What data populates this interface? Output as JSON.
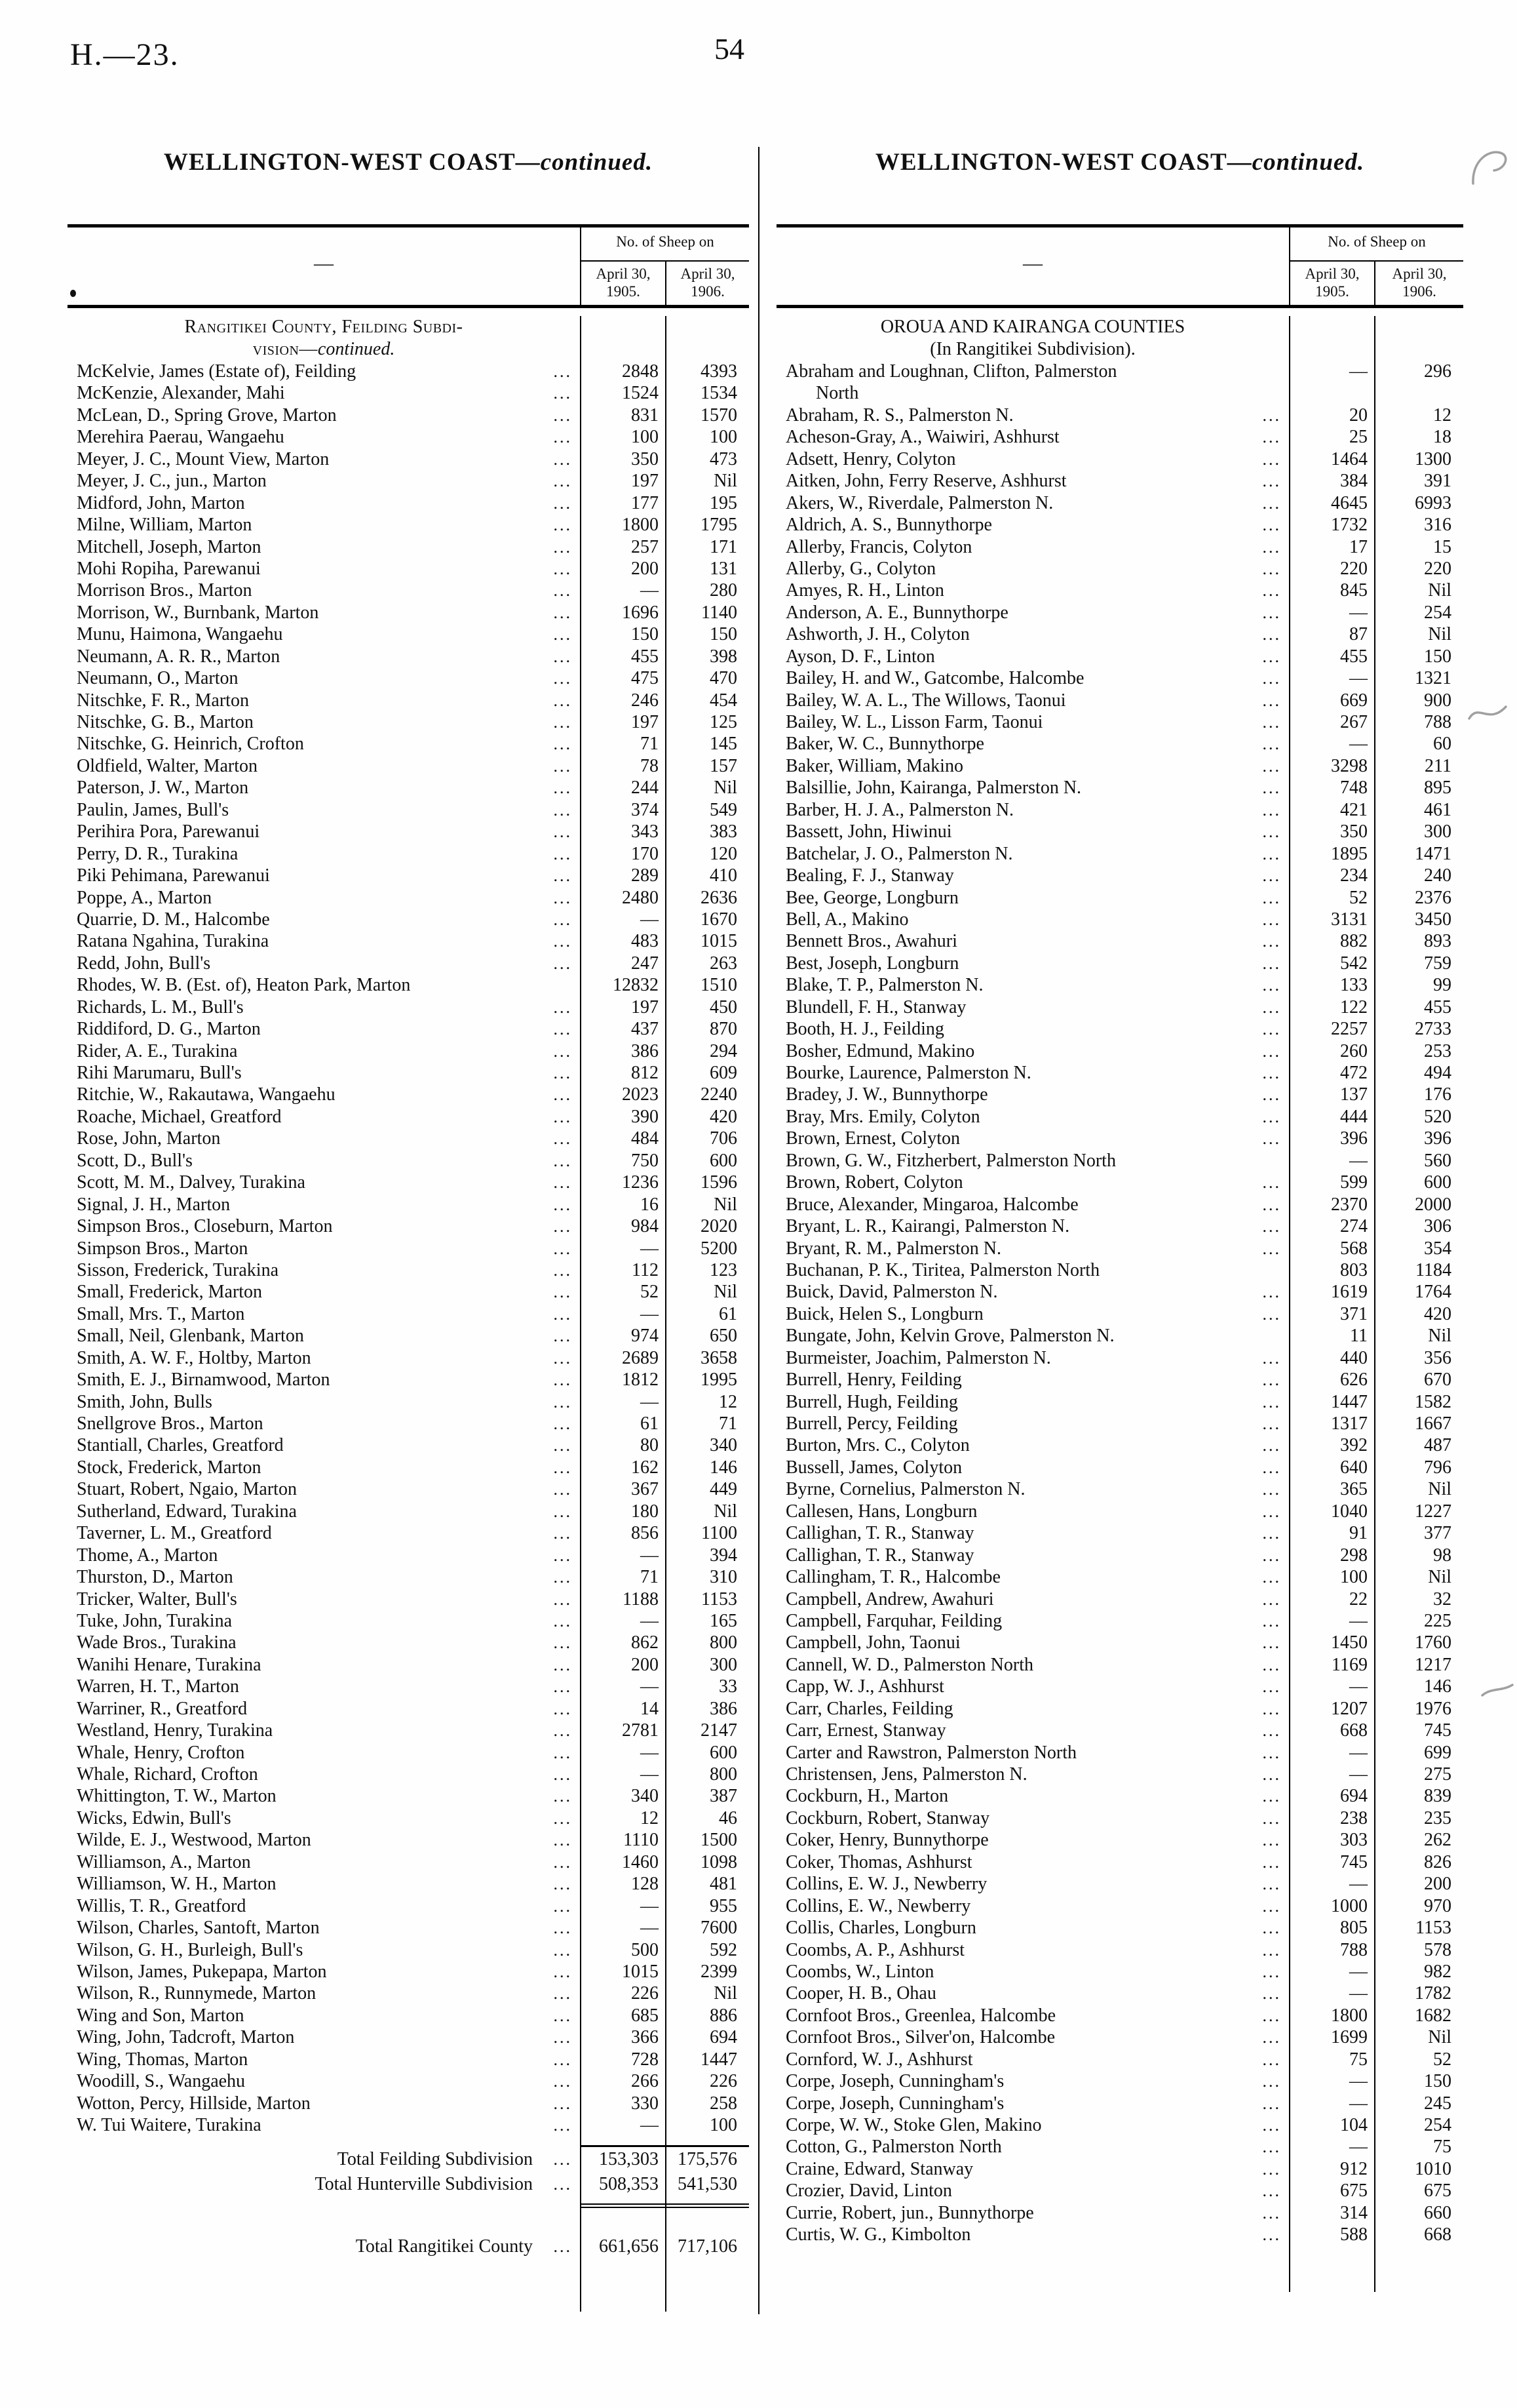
{
  "page": {
    "doc_ref": "H.—23.",
    "page_number": "54"
  },
  "left_column": {
    "title_main": "WELLINGTON-WEST COAST—",
    "title_continued": "continued.",
    "table_header": {
      "group": "No. of Sheep on",
      "name_placeholder": "—",
      "col1_line1": "April 30,",
      "col1_line2": "1905.",
      "col2_line1": "April 30,",
      "col2_line2": "1906."
    },
    "section_heading": {
      "line1": "Rangitikei County, Feilding Subdi-",
      "line2_pre": "vision—",
      "line2_italic": "continued."
    },
    "rows": [
      {
        "name": "McKelvie, James (Estate of), Feilding",
        "v1905": "2848",
        "v1906": "4393"
      },
      {
        "name": "McKenzie, Alexander, Mahi",
        "v1905": "1524",
        "v1906": "1534"
      },
      {
        "name": "McLean, D., Spring Grove, Marton",
        "v1905": "831",
        "v1906": "1570"
      },
      {
        "name": "Merehira Paerau, Wangaehu",
        "v1905": "100",
        "v1906": "100"
      },
      {
        "name": "Meyer, J. C., Mount View, Marton",
        "v1905": "350",
        "v1906": "473"
      },
      {
        "name": "Meyer, J. C., jun., Marton",
        "v1905": "197",
        "v1906": "Nil"
      },
      {
        "name": "Midford, John, Marton",
        "v1905": "177",
        "v1906": "195"
      },
      {
        "name": "Milne, William, Marton",
        "v1905": "1800",
        "v1906": "1795"
      },
      {
        "name": "Mitchell, Joseph, Marton",
        "v1905": "257",
        "v1906": "171"
      },
      {
        "name": "Mohi Ropiha, Parewanui",
        "v1905": "200",
        "v1906": "131"
      },
      {
        "name": "Morrison Bros., Marton",
        "v1905": "—",
        "v1906": "280"
      },
      {
        "name": "Morrison, W., Burnbank, Marton",
        "v1905": "1696",
        "v1906": "1140"
      },
      {
        "name": "Munu, Haimona, Wangaehu",
        "v1905": "150",
        "v1906": "150"
      },
      {
        "name": "Neumann, A. R. R., Marton",
        "v1905": "455",
        "v1906": "398"
      },
      {
        "name": "Neumann, O., Marton",
        "v1905": "475",
        "v1906": "470"
      },
      {
        "name": "Nitschke, F. R., Marton",
        "v1905": "246",
        "v1906": "454"
      },
      {
        "name": "Nitschke, G. B., Marton",
        "v1905": "197",
        "v1906": "125"
      },
      {
        "name": "Nitschke, G. Heinrich, Crofton",
        "v1905": "71",
        "v1906": "145"
      },
      {
        "name": "Oldfield, Walter, Marton",
        "v1905": "78",
        "v1906": "157"
      },
      {
        "name": "Paterson, J. W., Marton",
        "v1905": "244",
        "v1906": "Nil"
      },
      {
        "name": "Paulin, James, Bull's",
        "v1905": "374",
        "v1906": "549"
      },
      {
        "name": "Perihira Pora, Parewanui",
        "v1905": "343",
        "v1906": "383"
      },
      {
        "name": "Perry, D. R., Turakina",
        "v1905": "170",
        "v1906": "120"
      },
      {
        "name": "Piki Pehimana, Parewanui",
        "v1905": "289",
        "v1906": "410"
      },
      {
        "name": "Poppe, A., Marton",
        "v1905": "2480",
        "v1906": "2636"
      },
      {
        "name": "Quarrie, D. M., Halcombe",
        "v1905": "—",
        "v1906": "1670"
      },
      {
        "name": "Ratana Ngahina, Turakina",
        "v1905": "483",
        "v1906": "1015"
      },
      {
        "name": "Redd, John, Bull's",
        "v1905": "247",
        "v1906": "263"
      },
      {
        "name": "Rhodes, W. B. (Est. of), Heaton Park, Marton",
        "dots": false,
        "v1905": "12832",
        "v1906": "1510"
      },
      {
        "name": "Richards, L. M., Bull's",
        "v1905": "197",
        "v1906": "450"
      },
      {
        "name": "Riddiford, D. G., Marton",
        "v1905": "437",
        "v1906": "870"
      },
      {
        "name": "Rider, A. E., Turakina",
        "v1905": "386",
        "v1906": "294"
      },
      {
        "name": "Rihi Marumaru, Bull's",
        "v1905": "812",
        "v1906": "609"
      },
      {
        "name": "Ritchie, W., Rakautawa, Wangaehu",
        "v1905": "2023",
        "v1906": "2240"
      },
      {
        "name": "Roache, Michael, Greatford",
        "v1905": "390",
        "v1906": "420"
      },
      {
        "name": "Rose, John, Marton",
        "v1905": "484",
        "v1906": "706"
      },
      {
        "name": "Scott, D., Bull's",
        "v1905": "750",
        "v1906": "600"
      },
      {
        "name": "Scott, M. M., Dalvey, Turakina",
        "v1905": "1236",
        "v1906": "1596"
      },
      {
        "name": "Signal, J. H., Marton",
        "v1905": "16",
        "v1906": "Nil"
      },
      {
        "name": "Simpson Bros., Closeburn, Marton",
        "v1905": "984",
        "v1906": "2020"
      },
      {
        "name": "Simpson Bros., Marton",
        "v1905": "—",
        "v1906": "5200"
      },
      {
        "name": "Sisson, Frederick, Turakina",
        "v1905": "112",
        "v1906": "123"
      },
      {
        "name": "Small, Frederick, Marton",
        "v1905": "52",
        "v1906": "Nil"
      },
      {
        "name": "Small, Mrs. T., Marton",
        "v1905": "—",
        "v1906": "61"
      },
      {
        "name": "Small, Neil, Glenbank, Marton",
        "v1905": "974",
        "v1906": "650"
      },
      {
        "name": "Smith, A. W. F., Holtby, Marton",
        "v1905": "2689",
        "v1906": "3658"
      },
      {
        "name": "Smith, E. J., Birnamwood, Marton",
        "v1905": "1812",
        "v1906": "1995"
      },
      {
        "name": "Smith, John, Bulls",
        "v1905": "—",
        "v1906": "12"
      },
      {
        "name": "Snellgrove Bros., Marton",
        "v1905": "61",
        "v1906": "71"
      },
      {
        "name": "Stantiall, Charles, Greatford",
        "v1905": "80",
        "v1906": "340"
      },
      {
        "name": "Stock, Frederick, Marton",
        "v1905": "162",
        "v1906": "146"
      },
      {
        "name": "Stuart, Robert, Ngaio, Marton",
        "v1905": "367",
        "v1906": "449"
      },
      {
        "name": "Sutherland, Edward, Turakina",
        "v1905": "180",
        "v1906": "Nil"
      },
      {
        "name": "Taverner, L. M., Greatford",
        "v1905": "856",
        "v1906": "1100"
      },
      {
        "name": "Thome, A., Marton",
        "v1905": "—",
        "v1906": "394"
      },
      {
        "name": "Thurston, D., Marton",
        "v1905": "71",
        "v1906": "310"
      },
      {
        "name": "Tricker, Walter, Bull's",
        "v1905": "1188",
        "v1906": "1153"
      },
      {
        "name": "Tuke, John, Turakina",
        "v1905": "—",
        "v1906": "165"
      },
      {
        "name": "Wade Bros., Turakina",
        "v1905": "862",
        "v1906": "800"
      },
      {
        "name": "Wanihi Henare, Turakina",
        "v1905": "200",
        "v1906": "300"
      },
      {
        "name": "Warren, H. T., Marton",
        "v1905": "—",
        "v1906": "33"
      },
      {
        "name": "Warriner, R., Greatford",
        "v1905": "14",
        "v1906": "386"
      },
      {
        "name": "Westland, Henry, Turakina",
        "v1905": "2781",
        "v1906": "2147"
      },
      {
        "name": "Whale, Henry, Crofton",
        "v1905": "—",
        "v1906": "600"
      },
      {
        "name": "Whale, Richard, Crofton",
        "v1905": "—",
        "v1906": "800"
      },
      {
        "name": "Whittington, T. W., Marton",
        "v1905": "340",
        "v1906": "387"
      },
      {
        "name": "Wicks, Edwin, Bull's",
        "v1905": "12",
        "v1906": "46"
      },
      {
        "name": "Wilde, E. J., Westwood, Marton",
        "v1905": "1110",
        "v1906": "1500"
      },
      {
        "name": "Williamson, A., Marton",
        "v1905": "1460",
        "v1906": "1098"
      },
      {
        "name": "Williamson, W. H., Marton",
        "v1905": "128",
        "v1906": "481"
      },
      {
        "name": "Willis, T. R., Greatford",
        "v1905": "—",
        "v1906": "955"
      },
      {
        "name": "Wilson, Charles, Santoft, Marton",
        "v1905": "—",
        "v1906": "7600"
      },
      {
        "name": "Wilson, G. H., Burleigh, Bull's",
        "v1905": "500",
        "v1906": "592"
      },
      {
        "name": "Wilson, James, Pukepapa, Marton",
        "v1905": "1015",
        "v1906": "2399"
      },
      {
        "name": "Wilson, R., Runnymede, Marton",
        "v1905": "226",
        "v1906": "Nil"
      },
      {
        "name": "Wing and Son, Marton",
        "v1905": "685",
        "v1906": "886"
      },
      {
        "name": "Wing, John, Tadcroft, Marton",
        "v1905": "366",
        "v1906": "694"
      },
      {
        "name": "Wing, Thomas, Marton",
        "v1905": "728",
        "v1906": "1447"
      },
      {
        "name": "Woodill, S., Wangaehu",
        "v1905": "266",
        "v1906": "226"
      },
      {
        "name": "Wotton, Percy, Hillside, Marton",
        "v1905": "330",
        "v1906": "258"
      },
      {
        "name": "W. Tui Waitere, Turakina",
        "v1905": "—",
        "v1906": "100"
      }
    ],
    "totals": [
      {
        "label": "Total Feilding Subdivision",
        "v1905": "153,303",
        "v1906": "175,576"
      },
      {
        "label": "Total Hunterville Subdivision",
        "v1905": "508,353",
        "v1906": "541,530"
      }
    ],
    "grand_total": {
      "label": "Total Rangitikei County",
      "v1905": "661,656",
      "v1906": "717,106"
    }
  },
  "right_column": {
    "title_main": "WELLINGTON-WEST COAST—",
    "title_continued": "continued.",
    "table_header": {
      "group": "No. of Sheep on",
      "name_placeholder": "—",
      "col1_line1": "April 30,",
      "col1_line2": "1905.",
      "col2_line1": "April 30,",
      "col2_line2": "1906."
    },
    "section_heading": {
      "line1": "OROUA AND KAIRANGA COUNTIES",
      "line2_pre": "(In Rangitikei Subdivision).",
      "line2_italic": ""
    },
    "rows": [
      {
        "name": "Abraham and Loughnan, Clifton, Palmerston",
        "name2": "North",
        "dots": false,
        "v1905": "—",
        "v1906": "296"
      },
      {
        "name": "Abraham, R. S., Palmerston N.",
        "v1905": "20",
        "v1906": "12"
      },
      {
        "name": "Acheson-Gray, A., Waiwiri, Ashhurst",
        "v1905": "25",
        "v1906": "18"
      },
      {
        "name": "Adsett, Henry, Colyton",
        "v1905": "1464",
        "v1906": "1300"
      },
      {
        "name": "Aitken, John, Ferry Reserve, Ashhurst",
        "v1905": "384",
        "v1906": "391"
      },
      {
        "name": "Akers, W., Riverdale, Palmerston N.",
        "v1905": "4645",
        "v1906": "6993"
      },
      {
        "name": "Aldrich, A. S., Bunnythorpe",
        "v1905": "1732",
        "v1906": "316"
      },
      {
        "name": "Allerby, Francis, Colyton",
        "v1905": "17",
        "v1906": "15"
      },
      {
        "name": "Allerby, G., Colyton",
        "v1905": "220",
        "v1906": "220"
      },
      {
        "name": "Amyes, R. H., Linton",
        "v1905": "845",
        "v1906": "Nil"
      },
      {
        "name": "Anderson, A. E., Bunnythorpe",
        "v1905": "—",
        "v1906": "254"
      },
      {
        "name": "Ashworth, J. H., Colyton",
        "v1905": "87",
        "v1906": "Nil"
      },
      {
        "name": "Ayson, D. F., Linton",
        "v1905": "455",
        "v1906": "150"
      },
      {
        "name": "Bailey, H. and W., Gatcombe, Halcombe",
        "v1905": "—",
        "v1906": "1321"
      },
      {
        "name": "Bailey, W. A. L., The Willows, Taonui",
        "v1905": "669",
        "v1906": "900"
      },
      {
        "name": "Bailey, W. L., Lisson Farm, Taonui",
        "v1905": "267",
        "v1906": "788"
      },
      {
        "name": "Baker, W. C., Bunnythorpe",
        "v1905": "—",
        "v1906": "60"
      },
      {
        "name": "Baker, William, Makino",
        "v1905": "3298",
        "v1906": "211"
      },
      {
        "name": "Balsillie, John, Kairanga, Palmerston N.",
        "v1905": "748",
        "v1906": "895"
      },
      {
        "name": "Barber, H. J. A., Palmerston N.",
        "v1905": "421",
        "v1906": "461"
      },
      {
        "name": "Bassett, John, Hiwinui",
        "v1905": "350",
        "v1906": "300"
      },
      {
        "name": "Batchelar, J. O., Palmerston N.",
        "v1905": "1895",
        "v1906": "1471"
      },
      {
        "name": "Bealing, F. J., Stanway",
        "v1905": "234",
        "v1906": "240"
      },
      {
        "name": "Bee, George, Longburn",
        "v1905": "52",
        "v1906": "2376"
      },
      {
        "name": "Bell, A., Makino",
        "v1905": "3131",
        "v1906": "3450"
      },
      {
        "name": "Bennett Bros., Awahuri",
        "v1905": "882",
        "v1906": "893"
      },
      {
        "name": "Best, Joseph, Longburn",
        "v1905": "542",
        "v1906": "759"
      },
      {
        "name": "Blake, T. P., Palmerston N.",
        "v1905": "133",
        "v1906": "99"
      },
      {
        "name": "Blundell, F. H., Stanway",
        "v1905": "122",
        "v1906": "455"
      },
      {
        "name": "Booth, H. J., Feilding",
        "v1905": "2257",
        "v1906": "2733"
      },
      {
        "name": "Bosher, Edmund, Makino",
        "v1905": "260",
        "v1906": "253"
      },
      {
        "name": "Bourke, Laurence, Palmerston N.",
        "v1905": "472",
        "v1906": "494"
      },
      {
        "name": "Bradey, J. W., Bunnythorpe",
        "v1905": "137",
        "v1906": "176"
      },
      {
        "name": "Bray, Mrs. Emily, Colyton",
        "v1905": "444",
        "v1906": "520"
      },
      {
        "name": "Brown, Ernest, Colyton",
        "v1905": "396",
        "v1906": "396"
      },
      {
        "name": "Brown, G. W., Fitzherbert, Palmerston North",
        "dots": false,
        "v1905": "—",
        "v1906": "560"
      },
      {
        "name": "Brown, Robert, Colyton",
        "v1905": "599",
        "v1906": "600"
      },
      {
        "name": "Bruce, Alexander, Mingaroa, Halcombe",
        "v1905": "2370",
        "v1906": "2000"
      },
      {
        "name": "Bryant, L. R., Kairangi, Palmerston N.",
        "v1905": "274",
        "v1906": "306"
      },
      {
        "name": "Bryant, R. M., Palmerston N.",
        "v1905": "568",
        "v1906": "354"
      },
      {
        "name": "Buchanan, P. K., Tiritea, Palmerston North",
        "dots": false,
        "v1905": "803",
        "v1906": "1184"
      },
      {
        "name": "Buick, David, Palmerston N.",
        "v1905": "1619",
        "v1906": "1764"
      },
      {
        "name": "Buick, Helen S., Longburn",
        "v1905": "371",
        "v1906": "420"
      },
      {
        "name": "Bungate, John, Kelvin Grove, Palmerston N.",
        "dots": false,
        "v1905": "11",
        "v1906": "Nil"
      },
      {
        "name": "Burmeister, Joachim, Palmerston N.",
        "v1905": "440",
        "v1906": "356"
      },
      {
        "name": "Burrell, Henry, Feilding",
        "v1905": "626",
        "v1906": "670"
      },
      {
        "name": "Burrell, Hugh, Feilding",
        "v1905": "1447",
        "v1906": "1582"
      },
      {
        "name": "Burrell, Percy, Feilding",
        "v1905": "1317",
        "v1906": "1667"
      },
      {
        "name": "Burton, Mrs. C., Colyton",
        "v1905": "392",
        "v1906": "487"
      },
      {
        "name": "Bussell, James, Colyton",
        "v1905": "640",
        "v1906": "796"
      },
      {
        "name": "Byrne, Cornelius, Palmerston N.",
        "v1905": "365",
        "v1906": "Nil"
      },
      {
        "name": "Callesen, Hans, Longburn",
        "v1905": "1040",
        "v1906": "1227"
      },
      {
        "name": "Callighan, T. R., Stanway",
        "v1905": "91",
        "v1906": "377"
      },
      {
        "name": "Callighan, T. R., Stanway",
        "v1905": "298",
        "v1906": "98"
      },
      {
        "name": "Callingham, T. R., Halcombe",
        "v1905": "100",
        "v1906": "Nil"
      },
      {
        "name": "Campbell, Andrew, Awahuri",
        "v1905": "22",
        "v1906": "32"
      },
      {
        "name": "Campbell, Farquhar, Feilding",
        "v1905": "—",
        "v1906": "225"
      },
      {
        "name": "Campbell, John, Taonui",
        "v1905": "1450",
        "v1906": "1760"
      },
      {
        "name": "Cannell, W. D., Palmerston North",
        "v1905": "1169",
        "v1906": "1217"
      },
      {
        "name": "Capp, W. J., Ashhurst",
        "v1905": "—",
        "v1906": "146"
      },
      {
        "name": "Carr, Charles, Feilding",
        "v1905": "1207",
        "v1906": "1976"
      },
      {
        "name": "Carr, Ernest, Stanway",
        "v1905": "668",
        "v1906": "745"
      },
      {
        "name": "Carter and Rawstron, Palmerston North",
        "v1905": "—",
        "v1906": "699"
      },
      {
        "name": "Christensen, Jens, Palmerston N.",
        "v1905": "—",
        "v1906": "275"
      },
      {
        "name": "Cockburn, H., Marton",
        "v1905": "694",
        "v1906": "839"
      },
      {
        "name": "Cockburn, Robert, Stanway",
        "v1905": "238",
        "v1906": "235"
      },
      {
        "name": "Coker, Henry, Bunnythorpe",
        "v1905": "303",
        "v1906": "262"
      },
      {
        "name": "Coker, Thomas, Ashhurst",
        "v1905": "745",
        "v1906": "826"
      },
      {
        "name": "Collins, E. W. J., Newberry",
        "v1905": "—",
        "v1906": "200"
      },
      {
        "name": "Collins, E. W., Newberry",
        "v1905": "1000",
        "v1906": "970"
      },
      {
        "name": "Collis, Charles, Longburn",
        "v1905": "805",
        "v1906": "1153"
      },
      {
        "name": "Coombs, A. P., Ashhurst",
        "v1905": "788",
        "v1906": "578"
      },
      {
        "name": "Coombs, W., Linton",
        "v1905": "—",
        "v1906": "982"
      },
      {
        "name": "Cooper, H. B., Ohau",
        "v1905": "—",
        "v1906": "1782"
      },
      {
        "name": "Cornfoot Bros., Greenlea, Halcombe",
        "v1905": "1800",
        "v1906": "1682"
      },
      {
        "name": "Cornfoot Bros., Silver'on, Halcombe",
        "v1905": "1699",
        "v1906": "Nil"
      },
      {
        "name": "Cornford, W. J., Ashhurst",
        "v1905": "75",
        "v1906": "52"
      },
      {
        "name": "Corpe, Joseph, Cunningham's",
        "v1905": "—",
        "v1906": "150"
      },
      {
        "name": "Corpe, Joseph, Cunningham's",
        "v1905": "—",
        "v1906": "245"
      },
      {
        "name": "Corpe, W. W., Stoke Glen, Makino",
        "v1905": "104",
        "v1906": "254"
      },
      {
        "name": "Cotton, G., Palmerston North",
        "v1905": "—",
        "v1906": "75"
      },
      {
        "name": "Craine, Edward, Stanway",
        "v1905": "912",
        "v1906": "1010"
      },
      {
        "name": "Crozier, David, Linton",
        "v1905": "675",
        "v1906": "675"
      },
      {
        "name": "Currie, Robert, jun., Bunnythorpe",
        "v1905": "314",
        "v1906": "660"
      },
      {
        "name": "Curtis, W. G., Kimbolton",
        "v1905": "588",
        "v1906": "668"
      }
    ]
  }
}
